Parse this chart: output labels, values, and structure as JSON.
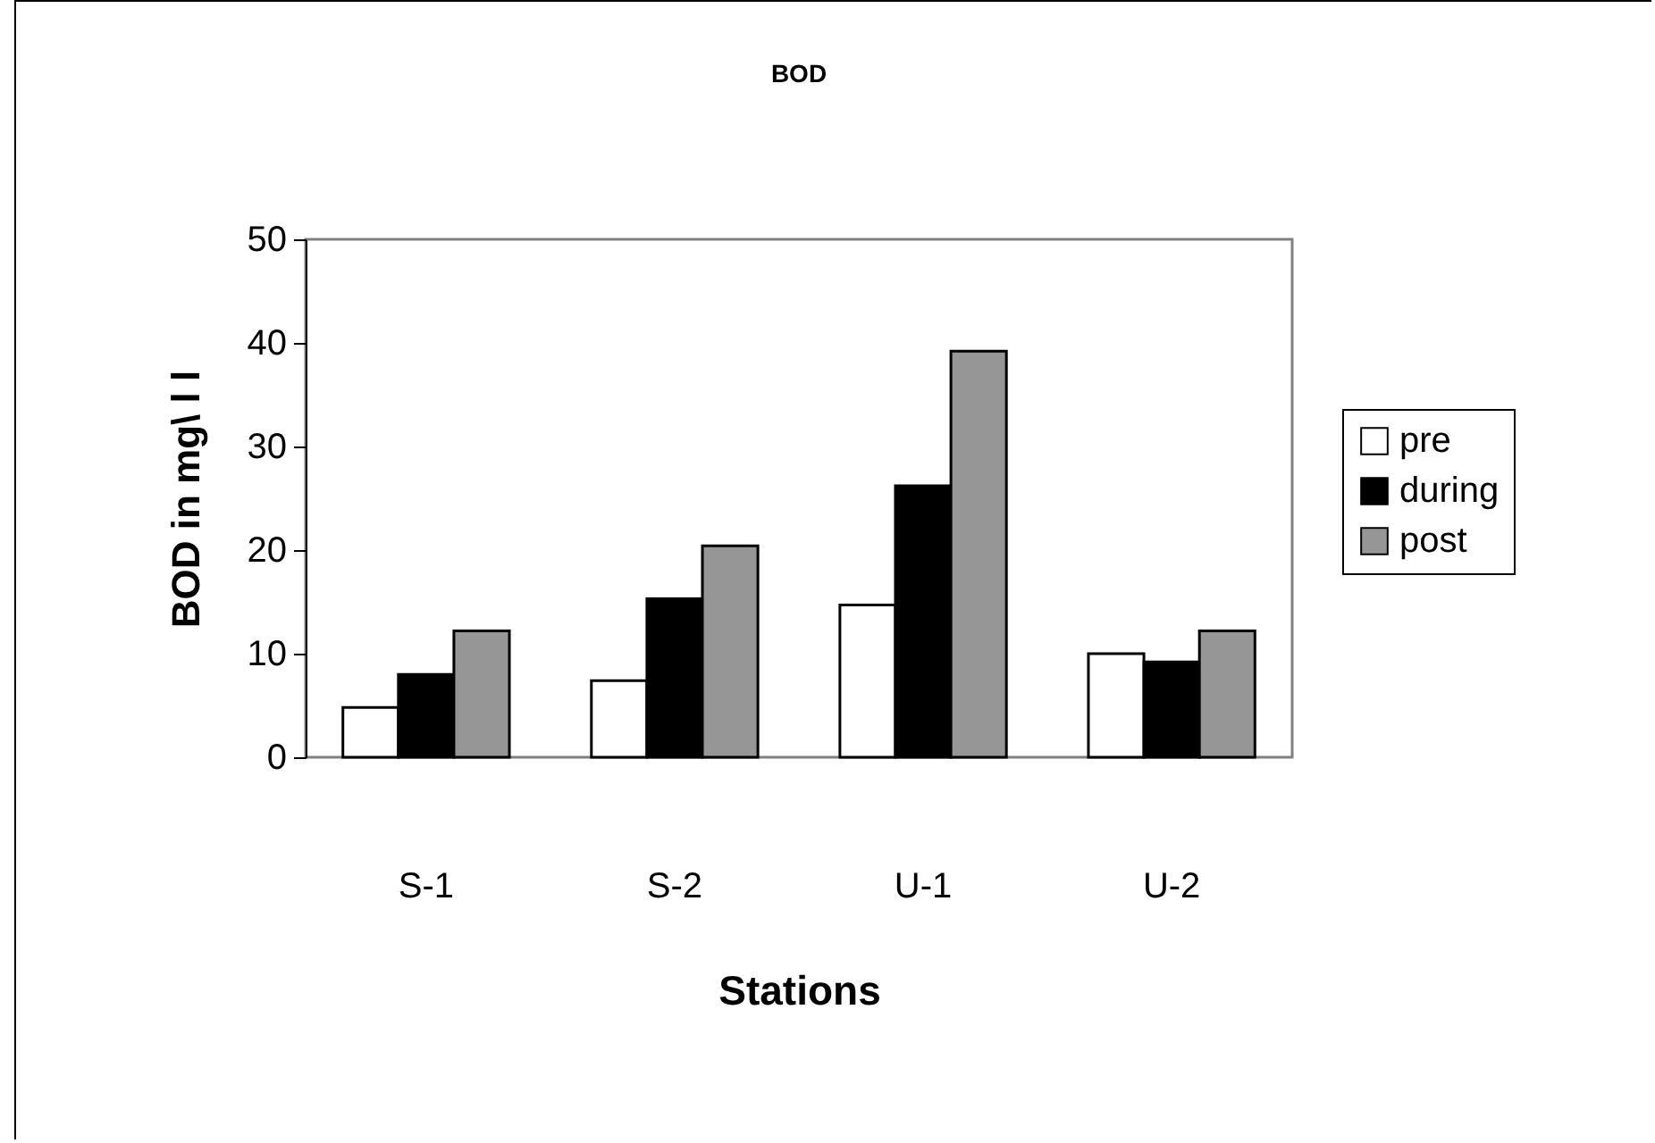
{
  "chart_data": {
    "type": "bar",
    "title": "BOD",
    "xlabel": "Stations",
    "ylabel": "BOD in   mg\\ l  l",
    "categories": [
      "S-1",
      "S-2",
      "U-1",
      "U-2"
    ],
    "series": [
      {
        "name": "pre",
        "color": "#ffffff",
        "values": [
          4.8,
          7.4,
          14.7,
          10.0
        ]
      },
      {
        "name": "during",
        "color": "#000000",
        "values": [
          8.0,
          15.3,
          26.2,
          9.2
        ]
      },
      {
        "name": "post",
        "color": "#969696",
        "values": [
          12.2,
          20.4,
          39.2,
          12.2
        ]
      }
    ],
    "ylim": [
      0,
      50
    ],
    "yticks": [
      0,
      10,
      20,
      30,
      40,
      50
    ],
    "grid": false,
    "legend": "right"
  }
}
